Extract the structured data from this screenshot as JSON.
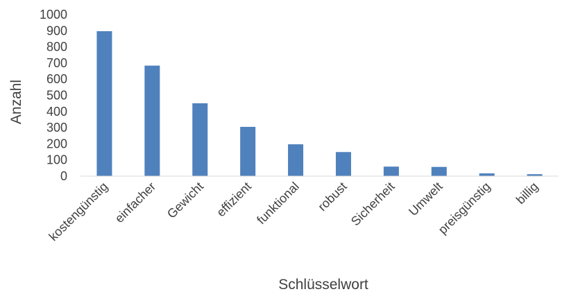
{
  "chart_data": {
    "type": "bar",
    "title": "",
    "xlabel": "Schlüsselwort",
    "ylabel": "Anzahl",
    "ylim": [
      0,
      1000
    ],
    "ytick_step": 100,
    "yticks": [
      "0",
      "100",
      "200",
      "300",
      "400",
      "500",
      "600",
      "700",
      "800",
      "900",
      "1000"
    ],
    "categories": [
      "kostengünstig",
      "einfacher",
      "Gewicht",
      "effizient",
      "funktional",
      "robust",
      "Sicherheit",
      "Umwelt",
      "preisgünstig",
      "billig"
    ],
    "values": [
      897,
      684,
      451,
      305,
      197,
      149,
      59,
      57,
      17,
      12
    ],
    "grid": false,
    "legend": "none",
    "colors": {
      "bar": "#4f81bd",
      "axis": "#d9d9d9",
      "text": "#404040"
    }
  }
}
